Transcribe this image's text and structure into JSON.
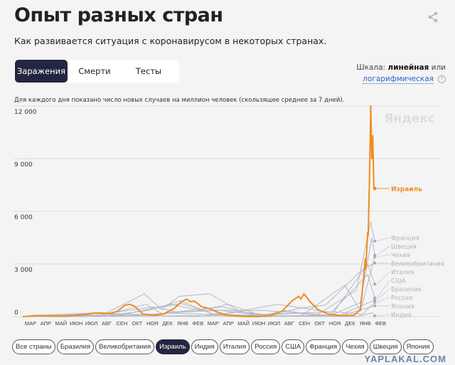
{
  "header": {
    "title": "Опыт разных стран",
    "subtitle": "Как развивается ситуация с коронавирусом в некоторых странах.",
    "share_icon": "share-icon"
  },
  "tabs": [
    {
      "label": "Заражения",
      "active": true
    },
    {
      "label": "Смерти"
    },
    {
      "label": "Тесты"
    }
  ],
  "scale": {
    "prefix": "Шкала:",
    "current": "линейная",
    "or": "или",
    "alt": "логарифмическая",
    "help": "?"
  },
  "note": "Для каждого дня показано число новых случаев на миллион человек (скользящее среднее за 7 дней).",
  "watermark": "YAPLAKAL.COM",
  "chips": [
    {
      "label": "Все страны"
    },
    {
      "label": "Бразилия"
    },
    {
      "label": "Великобритания"
    },
    {
      "label": "Израиль",
      "active": true
    },
    {
      "label": "Индия"
    },
    {
      "label": "Италия"
    },
    {
      "label": "Россия"
    },
    {
      "label": "США"
    },
    {
      "label": "Франция"
    },
    {
      "label": "Чехия"
    },
    {
      "label": "Швеция"
    },
    {
      "label": "Япония"
    }
  ],
  "chart_data": {
    "type": "line",
    "brand": "Яндекс",
    "ylim": [
      0,
      12000
    ],
    "yticks": [
      {
        "v": 0,
        "label": "0"
      },
      {
        "v": 3000,
        "label": "3 000"
      },
      {
        "v": 6000,
        "label": "6 000"
      },
      {
        "v": 9000,
        "label": "9 000"
      },
      {
        "v": 12000,
        "label": "12 000"
      }
    ],
    "xticks": [
      "МАР",
      "АПР",
      "МАЙ",
      "ИЮН",
      "ИЮЛ",
      "АВГ",
      "СЕН",
      "ОКТ",
      "НОЯ",
      "ДЕК",
      "ЯНВ",
      "ФЕВ",
      "МАР",
      "АПР",
      "МАЙ",
      "ИЮН",
      "ИЮЛ",
      "АВГ",
      "СЕН",
      "ОКТ",
      "НОЯ",
      "ДЕК",
      "ЯНВ",
      "ФЕВ"
    ],
    "xrange": [
      "2020-03-01",
      "2022-02-28"
    ],
    "grid": true,
    "highlight_color": "#f08c1e",
    "other_color": "#b4b8c6",
    "series": [
      {
        "name": "Израиль",
        "highlight": true,
        "points": [
          [
            "2020-03-01",
            0
          ],
          [
            "2020-04-05",
            60
          ],
          [
            "2020-05-01",
            20
          ],
          [
            "2020-06-01",
            30
          ],
          [
            "2020-07-01",
            120
          ],
          [
            "2020-07-25",
            210
          ],
          [
            "2020-08-20",
            180
          ],
          [
            "2020-09-05",
            300
          ],
          [
            "2020-09-20",
            650
          ],
          [
            "2020-09-30",
            700
          ],
          [
            "2020-10-08",
            600
          ],
          [
            "2020-10-25",
            150
          ],
          [
            "2020-11-15",
            70
          ],
          [
            "2020-12-05",
            150
          ],
          [
            "2020-12-25",
            450
          ],
          [
            "2021-01-10",
            850
          ],
          [
            "2021-01-20",
            1000
          ],
          [
            "2021-01-28",
            850
          ],
          [
            "2021-02-05",
            880
          ],
          [
            "2021-02-20",
            550
          ],
          [
            "2021-03-05",
            450
          ],
          [
            "2021-03-20",
            250
          ],
          [
            "2021-04-10",
            60
          ],
          [
            "2021-05-10",
            10
          ],
          [
            "2021-06-10",
            5
          ],
          [
            "2021-07-01",
            40
          ],
          [
            "2021-07-25",
            300
          ],
          [
            "2021-08-15",
            900
          ],
          [
            "2021-08-28",
            1150
          ],
          [
            "2021-09-02",
            1000
          ],
          [
            "2021-09-08",
            1300
          ],
          [
            "2021-09-20",
            850
          ],
          [
            "2021-10-05",
            400
          ],
          [
            "2021-10-25",
            150
          ],
          [
            "2021-11-20",
            60
          ],
          [
            "2021-12-15",
            70
          ],
          [
            "2021-12-28",
            400
          ],
          [
            "2022-01-04",
            2200
          ],
          [
            "2022-01-07",
            3300
          ],
          [
            "2022-01-08",
            2700
          ],
          [
            "2022-01-12",
            4800
          ],
          [
            "2022-01-13",
            4600
          ],
          [
            "2022-01-16",
            8600
          ],
          [
            "2022-01-18",
            12000
          ],
          [
            "2022-01-20",
            9000
          ],
          [
            "2022-01-22",
            10300
          ],
          [
            "2022-01-24",
            7400
          ],
          [
            "2022-01-26",
            7300
          ]
        ]
      },
      {
        "name": "Франция",
        "points": [
          [
            "2020-03-01",
            0
          ],
          [
            "2020-04-01",
            60
          ],
          [
            "2020-08-01",
            30
          ],
          [
            "2020-11-01",
            700
          ],
          [
            "2020-12-01",
            180
          ],
          [
            "2021-04-01",
            550
          ],
          [
            "2021-06-15",
            40
          ],
          [
            "2021-08-01",
            350
          ],
          [
            "2021-10-01",
            70
          ],
          [
            "2021-12-20",
            1500
          ],
          [
            "2022-01-18",
            5400
          ],
          [
            "2022-01-26",
            4300
          ]
        ]
      },
      {
        "name": "Швеция",
        "points": [
          [
            "2020-03-01",
            0
          ],
          [
            "2020-06-20",
            120
          ],
          [
            "2020-09-01",
            20
          ],
          [
            "2020-12-20",
            700
          ],
          [
            "2021-02-15",
            350
          ],
          [
            "2021-04-10",
            700
          ],
          [
            "2021-06-20",
            30
          ],
          [
            "2021-11-01",
            80
          ],
          [
            "2021-12-28",
            800
          ],
          [
            "2022-01-20",
            4500
          ],
          [
            "2022-01-26",
            3500
          ]
        ]
      },
      {
        "name": "Чехия",
        "points": [
          [
            "2020-03-01",
            0
          ],
          [
            "2020-08-01",
            20
          ],
          [
            "2020-10-28",
            1300
          ],
          [
            "2020-12-01",
            400
          ],
          [
            "2021-01-05",
            1150
          ],
          [
            "2021-03-05",
            1300
          ],
          [
            "2021-05-15",
            100
          ],
          [
            "2021-09-01",
            20
          ],
          [
            "2021-11-28",
            1800
          ],
          [
            "2021-12-28",
            300
          ],
          [
            "2022-01-26",
            3400
          ]
        ]
      },
      {
        "name": "Великобритания",
        "points": [
          [
            "2020-03-01",
            0
          ],
          [
            "2020-04-15",
            70
          ],
          [
            "2020-08-01",
            10
          ],
          [
            "2020-11-05",
            350
          ],
          [
            "2021-01-08",
            900
          ],
          [
            "2021-03-15",
            80
          ],
          [
            "2021-07-18",
            700
          ],
          [
            "2021-09-01",
            500
          ],
          [
            "2021-10-20",
            650
          ],
          [
            "2022-01-02",
            2700
          ],
          [
            "2022-01-26",
            3050
          ]
        ]
      },
      {
        "name": "Италия",
        "points": [
          [
            "2020-03-01",
            0
          ],
          [
            "2020-03-25",
            90
          ],
          [
            "2020-07-01",
            5
          ],
          [
            "2020-11-15",
            550
          ],
          [
            "2021-01-01",
            250
          ],
          [
            "2021-03-20",
            380
          ],
          [
            "2021-07-01",
            15
          ],
          [
            "2021-11-01",
            60
          ],
          [
            "2022-01-12",
            3000
          ],
          [
            "2022-01-26",
            1850
          ]
        ]
      },
      {
        "name": "США",
        "points": [
          [
            "2020-03-01",
            0
          ],
          [
            "2020-04-15",
            90
          ],
          [
            "2020-07-20",
            200
          ],
          [
            "2020-09-10",
            110
          ],
          [
            "2021-01-10",
            750
          ],
          [
            "2021-03-10",
            170
          ],
          [
            "2021-06-15",
            35
          ],
          [
            "2021-09-05",
            500
          ],
          [
            "2021-11-01",
            230
          ],
          [
            "2022-01-12",
            2400
          ],
          [
            "2022-01-26",
            1070
          ]
        ]
      },
      {
        "name": "Бразилия",
        "points": [
          [
            "2020-03-01",
            0
          ],
          [
            "2020-07-25",
            220
          ],
          [
            "2020-11-01",
            100
          ],
          [
            "2021-01-10",
            250
          ],
          [
            "2021-03-25",
            360
          ],
          [
            "2021-06-20",
            350
          ],
          [
            "2021-11-15",
            40
          ],
          [
            "2022-01-26",
            950
          ]
        ]
      },
      {
        "name": "Россия",
        "points": [
          [
            "2020-03-01",
            0
          ],
          [
            "2020-05-15",
            65
          ],
          [
            "2020-09-01",
            35
          ],
          [
            "2020-12-25",
            200
          ],
          [
            "2021-05-01",
            60
          ],
          [
            "2021-07-10",
            160
          ],
          [
            "2021-11-05",
            280
          ],
          [
            "2022-01-01",
            130
          ],
          [
            "2022-01-26",
            820
          ]
        ]
      },
      {
        "name": "Япония",
        "points": [
          [
            "2020-03-01",
            0
          ],
          [
            "2021-01-10",
            50
          ],
          [
            "2021-05-15",
            45
          ],
          [
            "2021-08-25",
            190
          ],
          [
            "2021-11-15",
            1
          ],
          [
            "2022-01-26",
            620
          ]
        ]
      },
      {
        "name": "Индия",
        "points": [
          [
            "2020-03-01",
            0
          ],
          [
            "2020-09-15",
            70
          ],
          [
            "2021-02-10",
            8
          ],
          [
            "2021-05-08",
            280
          ],
          [
            "2021-07-15",
            30
          ],
          [
            "2021-12-20",
            5
          ],
          [
            "2022-01-22",
            220
          ],
          [
            "2022-01-26",
            40
          ]
        ]
      }
    ]
  }
}
